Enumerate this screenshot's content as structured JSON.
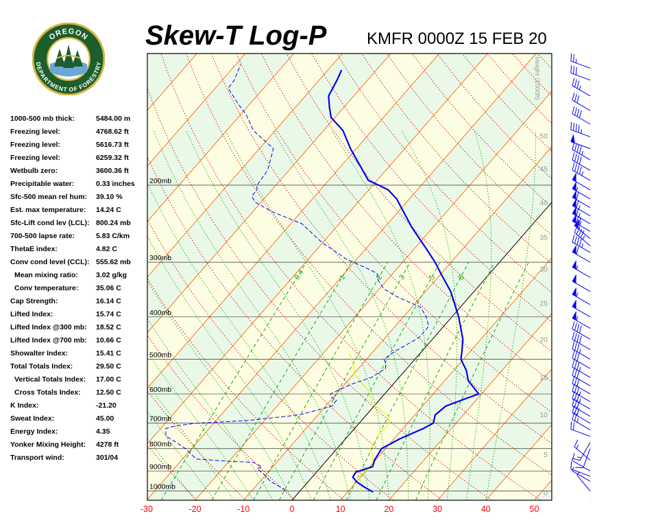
{
  "header": {
    "title": "Skew-T Log-P",
    "station_time": "KMFR 0000Z 15 FEB 20"
  },
  "logo": {
    "top_text": "OREGON",
    "bottom_text": "DEPARTMENT OF FORESTRY"
  },
  "stats": [
    {
      "label": "1000-500 mb thick:",
      "value": "5484.00 m"
    },
    {
      "label": "Freezing level:",
      "value": "4768.62 ft"
    },
    {
      "label": "Freezing level:",
      "value": "5616.73 ft"
    },
    {
      "label": "Freezing level:",
      "value": "6259.32 ft"
    },
    {
      "label": "Wetbulb zero:",
      "value": "3600.36 ft"
    },
    {
      "label": "Precipitable water:",
      "value": "0.33 inches"
    },
    {
      "label": "Sfc-500 mean rel hum:",
      "value": "39.10 %"
    },
    {
      "label": "Est. max temperature:",
      "value": "14.24 C"
    },
    {
      "label": "Sfc-Lift cond lev (LCL):",
      "value": "800.24 mb"
    },
    {
      "label": "700-500 lapse rate:",
      "value": "5.83 C/km"
    },
    {
      "label": "ThetaE index:",
      "value": "4.82 C"
    },
    {
      "label": "Conv cond level (CCL):",
      "value": "555.62 mb"
    },
    {
      "label": "Mean mixing ratio:",
      "value": "3.02 g/kg",
      "indent": true
    },
    {
      "label": "Conv temperature:",
      "value": "35.06 C",
      "indent": true
    },
    {
      "label": "Cap Strength:",
      "value": "16.14 C"
    },
    {
      "label": "Lifted Index:",
      "value": "15.74 C"
    },
    {
      "label": "Lifted Index @300 mb:",
      "value": "18.52 C"
    },
    {
      "label": "Lifted Index @700 mb:",
      "value": "10.66 C"
    },
    {
      "label": "Showalter Index:",
      "value": "15.41 C"
    },
    {
      "label": "Total Totals Index:",
      "value": "29.50 C"
    },
    {
      "label": "Vertical Totals Index:",
      "value": "17.00 C",
      "indent": true
    },
    {
      "label": "Cross Totals Index:",
      "value": "12.50 C",
      "indent": true
    },
    {
      "label": "K Index:",
      "value": "-21.20"
    },
    {
      "label": "Sweat Index:",
      "value": "45.00"
    },
    {
      "label": "Energy Index:",
      "value": "4.35"
    },
    {
      "label": "Yonker Mixing Height:",
      "value": "4278 ft"
    },
    {
      "label": "Transport wind:",
      "value": "301/04"
    }
  ],
  "chart_data": {
    "type": "line",
    "x_ticks": [
      -30,
      -20,
      -10,
      0,
      10,
      20,
      30,
      40,
      50
    ],
    "pressure_levels": [
      {
        "p": 200,
        "label": "200mb"
      },
      {
        "p": 300,
        "label": "300mb"
      },
      {
        "p": 400,
        "label": "400mb"
      },
      {
        "p": 500,
        "label": "500mb"
      },
      {
        "p": 600,
        "label": "600mb"
      },
      {
        "p": 700,
        "label": "700mb"
      },
      {
        "p": 800,
        "label": "800mb"
      },
      {
        "p": 900,
        "label": "900mb"
      },
      {
        "p": 1000,
        "label": "1000mb"
      }
    ],
    "height_title": "Height (1000ft)",
    "height_ticks": [
      {
        "h": 50,
        "p": 154
      },
      {
        "h": 45,
        "p": 183
      },
      {
        "h": 40,
        "p": 219
      },
      {
        "h": 35,
        "p": 263
      },
      {
        "h": 30,
        "p": 311
      },
      {
        "h": 25,
        "p": 372
      },
      {
        "h": 20,
        "p": 450
      },
      {
        "h": 15,
        "p": 549
      },
      {
        "h": 10,
        "p": 669
      },
      {
        "h": 5,
        "p": 825
      },
      {
        "h": 0,
        "p": 1008
      }
    ],
    "mixing_ratio_labels": [
      "0.4",
      "1",
      "2",
      "3",
      "5",
      "8"
    ],
    "series": [],
    "temperature": [
      [
        1005,
        15.2
      ],
      [
        980,
        12.6
      ],
      [
        955,
        10.2
      ],
      [
        930,
        8.4
      ],
      [
        905,
        8.1
      ],
      [
        880,
        10.6
      ],
      [
        850,
        9.8
      ],
      [
        800,
        9.2
      ],
      [
        760,
        11.2
      ],
      [
        720,
        14.2
      ],
      [
        700,
        15.3
      ],
      [
        670,
        14.2
      ],
      [
        640,
        14.8
      ],
      [
        615,
        17.6
      ],
      [
        600,
        19.4
      ],
      [
        560,
        14.9
      ],
      [
        530,
        12.6
      ],
      [
        500,
        9.5
      ],
      [
        480,
        8.3
      ],
      [
        450,
        6.3
      ],
      [
        400,
        1.4
      ],
      [
        350,
        -4.8
      ],
      [
        320,
        -9.8
      ],
      [
        300,
        -13.3
      ],
      [
        280,
        -17.4
      ],
      [
        250,
        -24.3
      ],
      [
        230,
        -28.9
      ],
      [
        215,
        -32.6
      ],
      [
        205,
        -36.0
      ],
      [
        200,
        -38.8
      ],
      [
        195,
        -41.8
      ],
      [
        180,
        -46.3
      ],
      [
        165,
        -51.2
      ],
      [
        150,
        -56.0
      ],
      [
        140,
        -60.8
      ],
      [
        133,
        -62.9
      ],
      [
        125,
        -65.2
      ],
      [
        115,
        -66.3
      ],
      [
        109,
        -67.2
      ]
    ],
    "dewpoint": [
      [
        1000,
        -3.0
      ],
      [
        990,
        -3.7
      ],
      [
        950,
        -7.9
      ],
      [
        910,
        -10.9
      ],
      [
        890,
        -12.9
      ],
      [
        880,
        -12.2
      ],
      [
        860,
        -14.8
      ],
      [
        855,
        -20.3
      ],
      [
        845,
        -27.2
      ],
      [
        800,
        -31.3
      ],
      [
        770,
        -34.8
      ],
      [
        750,
        -37.5
      ],
      [
        720,
        -39.0
      ],
      [
        710,
        -37.5
      ],
      [
        700,
        -33.5
      ],
      [
        690,
        -23.5
      ],
      [
        670,
        -13.8
      ],
      [
        640,
        -8.7
      ],
      [
        620,
        -8.8
      ],
      [
        610,
        -10.5
      ],
      [
        600,
        -11.2
      ],
      [
        570,
        -8.6
      ],
      [
        550,
        -5.7
      ],
      [
        525,
        -4.4
      ],
      [
        510,
        -5.3
      ],
      [
        500,
        -6.4
      ],
      [
        480,
        -5.6
      ],
      [
        460,
        -4.1
      ],
      [
        445,
        -3.0
      ],
      [
        420,
        -3.1
      ],
      [
        400,
        -5.3
      ],
      [
        380,
        -8.2
      ],
      [
        360,
        -14.9
      ],
      [
        345,
        -19.1
      ],
      [
        330,
        -21.8
      ],
      [
        318,
        -23.3
      ],
      [
        310,
        -26.2
      ],
      [
        295,
        -32.2
      ],
      [
        270,
        -40.3
      ],
      [
        245,
        -47.7
      ],
      [
        230,
        -56.0
      ],
      [
        219,
        -61.1
      ],
      [
        212,
        -63.0
      ],
      [
        205,
        -63.1
      ],
      [
        200,
        -63.9
      ],
      [
        185,
        -64.4
      ],
      [
        165,
        -67.1
      ],
      [
        150,
        -74.5
      ],
      [
        138,
        -78.8
      ],
      [
        130,
        -82.6
      ],
      [
        120,
        -87.3
      ],
      [
        115,
        -87.5
      ],
      [
        106,
        -89.0
      ]
    ],
    "parcel": [
      [
        1005,
        12.6
      ],
      [
        960,
        11.3
      ],
      [
        930,
        9.7
      ],
      [
        900,
        9.9
      ],
      [
        880,
        10.2
      ],
      [
        860,
        10.0
      ],
      [
        830,
        8.6
      ],
      [
        800,
        6.9
      ],
      [
        770,
        6.5
      ],
      [
        740,
        6.0
      ],
      [
        710,
        6.3
      ],
      [
        690,
        5.8
      ],
      [
        670,
        4.3
      ],
      [
        650,
        1.7
      ],
      [
        630,
        -1.0
      ],
      [
        610,
        -2.3
      ],
      [
        590,
        -3.9
      ],
      [
        565,
        -6.9
      ],
      [
        540,
        -9.9
      ],
      [
        520,
        -11.1
      ],
      [
        500,
        -13.1
      ],
      [
        485,
        -14.6
      ]
    ],
    "wind_barbs": [
      {
        "p": 1000,
        "dir": 320,
        "spd": 5
      },
      {
        "p": 950,
        "dir": 300,
        "spd": 5
      },
      {
        "p": 925,
        "dir": 290,
        "spd": 10
      },
      {
        "p": 900,
        "dir": 300,
        "spd": 10
      },
      {
        "p": 850,
        "dir": 310,
        "spd": 15
      },
      {
        "p": 800,
        "dir": 200,
        "spd": 10
      },
      {
        "p": 775,
        "dir": 210,
        "spd": 15
      },
      {
        "p": 750,
        "dir": 290,
        "spd": 20
      },
      {
        "p": 725,
        "dir": 300,
        "spd": 25
      },
      {
        "p": 700,
        "dir": 300,
        "spd": 30
      },
      {
        "p": 675,
        "dir": 300,
        "spd": 30
      },
      {
        "p": 650,
        "dir": 300,
        "spd": 35
      },
      {
        "p": 625,
        "dir": 300,
        "spd": 35
      },
      {
        "p": 600,
        "dir": 300,
        "spd": 30
      },
      {
        "p": 575,
        "dir": 300,
        "spd": 30
      },
      {
        "p": 550,
        "dir": 300,
        "spd": 35
      },
      {
        "p": 525,
        "dir": 300,
        "spd": 30
      },
      {
        "p": 500,
        "dir": 300,
        "spd": 35
      },
      {
        "p": 475,
        "dir": 300,
        "spd": 40
      },
      {
        "p": 450,
        "dir": 300,
        "spd": 40
      },
      {
        "p": 425,
        "dir": 300,
        "spd": 55
      },
      {
        "p": 400,
        "dir": 300,
        "spd": 50
      },
      {
        "p": 375,
        "dir": 300,
        "spd": 55
      },
      {
        "p": 350,
        "dir": 300,
        "spd": 50
      },
      {
        "p": 325,
        "dir": 300,
        "spd": 55
      },
      {
        "p": 300,
        "dir": 300,
        "spd": 60
      },
      {
        "p": 285,
        "dir": 300,
        "spd": 45
      },
      {
        "p": 275,
        "dir": 310,
        "spd": 45
      },
      {
        "p": 265,
        "dir": 310,
        "spd": 60
      },
      {
        "p": 255,
        "dir": 300,
        "spd": 70
      },
      {
        "p": 245,
        "dir": 300,
        "spd": 65
      },
      {
        "p": 235,
        "dir": 300,
        "spd": 65
      },
      {
        "p": 225,
        "dir": 300,
        "spd": 60
      },
      {
        "p": 215,
        "dir": 300,
        "spd": 55
      },
      {
        "p": 205,
        "dir": 300,
        "spd": 50
      },
      {
        "p": 195,
        "dir": 300,
        "spd": 45
      },
      {
        "p": 185,
        "dir": 300,
        "spd": 40
      },
      {
        "p": 175,
        "dir": 300,
        "spd": 45
      },
      {
        "p": 165,
        "dir": 290,
        "spd": 50
      },
      {
        "p": 155,
        "dir": 290,
        "spd": 45
      },
      {
        "p": 145,
        "dir": 300,
        "spd": 40
      },
      {
        "p": 135,
        "dir": 300,
        "spd": 30
      },
      {
        "p": 125,
        "dir": 300,
        "spd": 35
      },
      {
        "p": 115,
        "dir": 290,
        "spd": 30
      },
      {
        "p": 108,
        "dir": 290,
        "spd": 25
      }
    ],
    "colors": {
      "temperature": "#0000ee",
      "dewpoint": "#0000ee",
      "parcel": "#eeee00",
      "isotherm": "#ff6600",
      "dry_adiabat": "#cc0000",
      "moist_adiabat": "#00aa00",
      "mixing_ratio": "#009900",
      "isobar": "#333333",
      "wind_barb": "#0000ee"
    }
  }
}
